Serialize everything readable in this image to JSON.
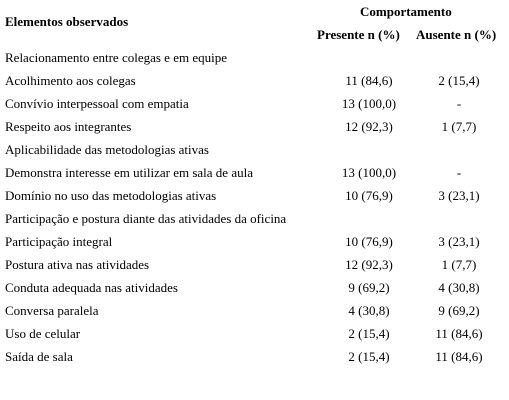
{
  "header": {
    "elements_label": "Elementos observados",
    "group_label": "Comportamento",
    "present_label": "Presente n (%)",
    "absent_label": "Ausente n (%)"
  },
  "rows": [
    {
      "label": "Relacionamento entre colegas e em equipe",
      "present": "",
      "absent": "",
      "section": true
    },
    {
      "label": "Acolhimento aos colegas",
      "present": "11 (84,6)",
      "absent": "2 (15,4)"
    },
    {
      "label": "Convívio interpessoal com empatia",
      "present": "13 (100,0)",
      "absent": "-"
    },
    {
      "label": "Respeito aos integrantes",
      "present": "12 (92,3)",
      "absent": "1 (7,7)"
    },
    {
      "label": "Aplicabilidade das metodologias ativas",
      "present": "",
      "absent": "",
      "section": true
    },
    {
      "label": "Demonstra interesse em utilizar em sala de aula",
      "present": "13 (100,0)",
      "absent": "-"
    },
    {
      "label": "Domínio no uso das metodologias ativas",
      "present": "10 (76,9)",
      "absent": "3 (23,1)"
    },
    {
      "label": "Participação e postura diante das atividades da oficina",
      "present": "",
      "absent": "",
      "section": true
    },
    {
      "label": "Participação integral",
      "present": "10 (76,9)",
      "absent": "3 (23,1)"
    },
    {
      "label": "Postura ativa nas atividades",
      "present": "12 (92,3)",
      "absent": "1 (7,7)"
    },
    {
      "label": "Conduta adequada nas atividades",
      "present": "9 (69,2)",
      "absent": "4 (30,8)"
    },
    {
      "label": "Conversa paralela",
      "present": "4 (30,8)",
      "absent": "9 (69,2)"
    },
    {
      "label": "Uso de celular",
      "present": "2 (15,4)",
      "absent": "11 (84,6)"
    },
    {
      "label": "Saída de sala",
      "present": "2 (15,4)",
      "absent": "11 (84,6)"
    }
  ]
}
